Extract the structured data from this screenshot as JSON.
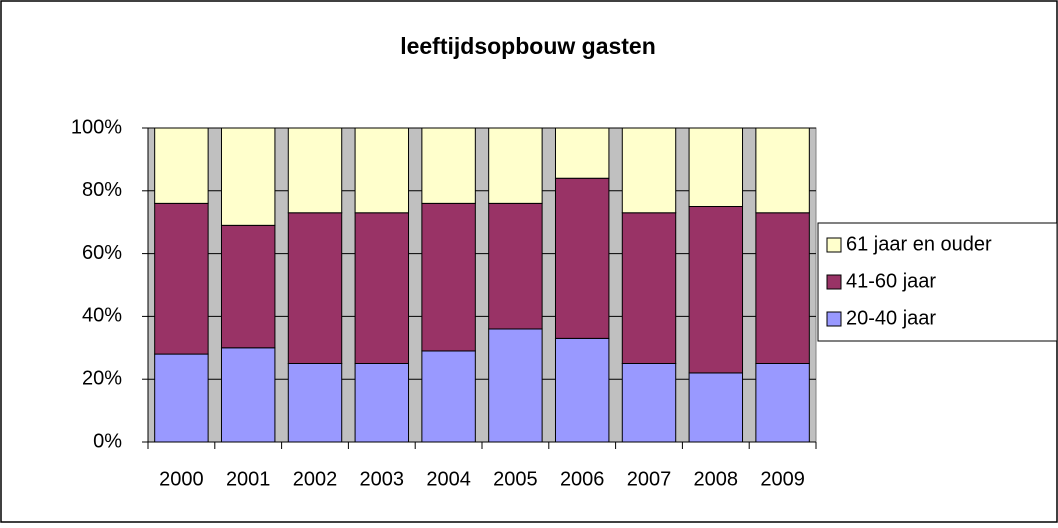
{
  "chart_data": {
    "type": "stacked_bar",
    "title": "leeftijdsopbouw gasten",
    "categories": [
      "2000",
      "2001",
      "2002",
      "2003",
      "2004",
      "2005",
      "2006",
      "2007",
      "2008",
      "2009"
    ],
    "series": [
      {
        "name": "20-40 jaar",
        "color": "#9999ff",
        "values": [
          28,
          30,
          25,
          25,
          29,
          36,
          33,
          25,
          22,
          25
        ]
      },
      {
        "name": "41-60 jaar",
        "color": "#993366",
        "values": [
          48,
          39,
          48,
          48,
          47,
          40,
          51,
          48,
          53,
          48
        ]
      },
      {
        "name": "61 jaar en ouder",
        "color": "#ffffcc",
        "values": [
          24,
          31,
          27,
          27,
          24,
          24,
          16,
          27,
          25,
          27
        ]
      }
    ],
    "ylim": [
      0,
      100
    ],
    "yticks": [
      {
        "value": 0,
        "label": "0%"
      },
      {
        "value": 20,
        "label": "20%"
      },
      {
        "value": 40,
        "label": "40%"
      },
      {
        "value": 60,
        "label": "60%"
      },
      {
        "value": 80,
        "label": "80%"
      },
      {
        "value": 100,
        "label": "100%"
      }
    ],
    "grid": true,
    "legend": "right",
    "plot_background": "#c0c0c0"
  }
}
